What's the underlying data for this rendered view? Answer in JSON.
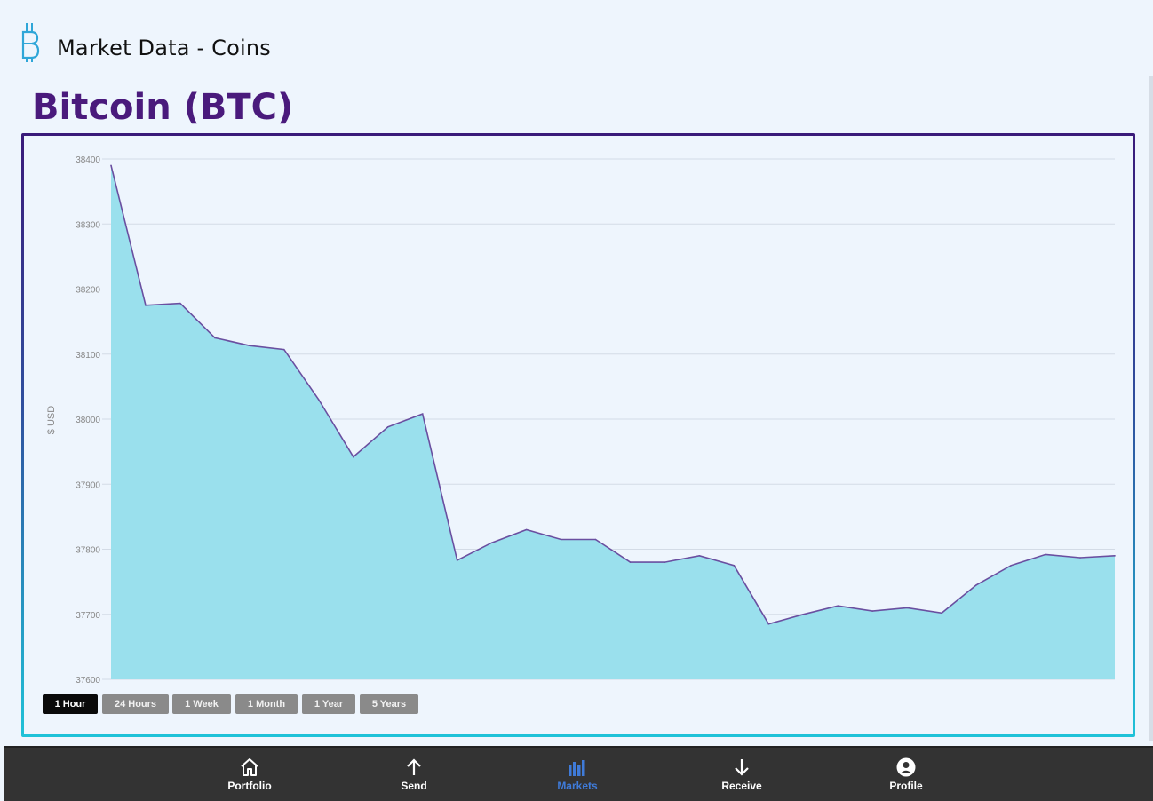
{
  "header": {
    "title": "Market Data - Coins",
    "logo_icon": "bitcoin-plug-logo-icon"
  },
  "coin": {
    "title": "Bitcoin (BTC)"
  },
  "colors": {
    "accent_purple": "#4a1a7c",
    "area_fill": "#9ae0ed",
    "line": "#6a4fa0",
    "nav_active": "#3f7bd9"
  },
  "chart_data": {
    "type": "area",
    "ylabel": "$ USD",
    "ylim": [
      37600,
      38400
    ],
    "yticks": [
      37600,
      37700,
      37800,
      37900,
      38000,
      38100,
      38200,
      38300,
      38400
    ],
    "grid": true,
    "series": [
      {
        "values": [
          38390,
          38175,
          38178,
          38125,
          38113,
          38107,
          38030,
          37942,
          37988,
          38008,
          37783,
          37810,
          37830,
          37815,
          37815,
          37780,
          37780,
          37790,
          37775,
          37685,
          37700,
          37713,
          37705,
          37710,
          37702,
          37745,
          37775,
          37792,
          37787,
          37790
        ]
      }
    ]
  },
  "ranges": [
    {
      "label": "1 Hour",
      "active": true
    },
    {
      "label": "24 Hours",
      "active": false
    },
    {
      "label": "1 Week",
      "active": false
    },
    {
      "label": "1 Month",
      "active": false
    },
    {
      "label": "1 Year",
      "active": false
    },
    {
      "label": "5 Years",
      "active": false
    }
  ],
  "nav": {
    "items": [
      {
        "label": "Portfolio",
        "icon": "home-icon",
        "active": false
      },
      {
        "label": "Send",
        "icon": "arrow-up-icon",
        "active": false
      },
      {
        "label": "Markets",
        "icon": "bar-chart-icon",
        "active": true
      },
      {
        "label": "Receive",
        "icon": "arrow-down-icon",
        "active": false
      },
      {
        "label": "Profile",
        "icon": "user-circle-icon",
        "active": false
      }
    ]
  }
}
